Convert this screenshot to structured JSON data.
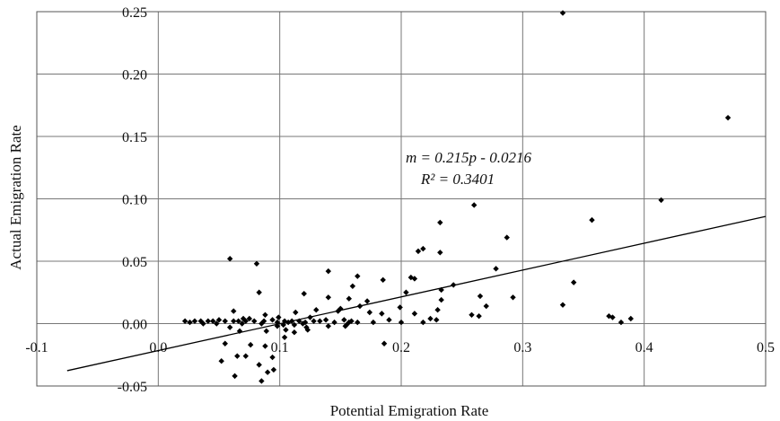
{
  "chart_data": {
    "type": "scatter",
    "xlabel": "Potential Emigration Rate",
    "ylabel": "Actual Emigration Rate",
    "xlim": [
      -0.1,
      0.5
    ],
    "ylim": [
      -0.05,
      0.25
    ],
    "x_ticks": [
      "-0.1",
      "0.0",
      "0.1",
      "0.2",
      "0.3",
      "0.4",
      "0.5"
    ],
    "y_ticks": [
      "-0.05",
      "0.00",
      "0.05",
      "0.10",
      "0.15",
      "0.20",
      "0.25"
    ],
    "grid": true,
    "legend": "none",
    "trendline": {
      "equation": "m = 0.215p - 0.0216",
      "r_squared": "R² = 0.3401",
      "slope": 0.215,
      "intercept": -0.0216,
      "x_range": [
        -0.075,
        0.5
      ]
    },
    "points": [
      [
        0.333,
        0.249
      ],
      [
        0.469,
        0.165
      ],
      [
        0.414,
        0.099
      ],
      [
        0.26,
        0.095
      ],
      [
        0.357,
        0.083
      ],
      [
        0.232,
        0.081
      ],
      [
        0.287,
        0.069
      ],
      [
        0.218,
        0.06
      ],
      [
        0.214,
        0.058
      ],
      [
        0.232,
        0.057
      ],
      [
        0.059,
        0.052
      ],
      [
        0.081,
        0.048
      ],
      [
        0.278,
        0.044
      ],
      [
        0.14,
        0.042
      ],
      [
        0.164,
        0.038
      ],
      [
        0.208,
        0.037
      ],
      [
        0.211,
        0.036
      ],
      [
        0.185,
        0.035
      ],
      [
        0.342,
        0.033
      ],
      [
        0.243,
        0.031
      ],
      [
        0.16,
        0.03
      ],
      [
        0.233,
        0.027
      ],
      [
        0.083,
        0.025
      ],
      [
        0.12,
        0.024
      ],
      [
        0.204,
        0.025
      ],
      [
        0.265,
        0.022
      ],
      [
        0.292,
        0.021
      ],
      [
        0.14,
        0.021
      ],
      [
        0.157,
        0.02
      ],
      [
        0.233,
        0.019
      ],
      [
        0.172,
        0.018
      ],
      [
        0.333,
        0.015
      ],
      [
        0.27,
        0.014
      ],
      [
        0.166,
        0.014
      ],
      [
        0.199,
        0.013
      ],
      [
        0.15,
        0.012
      ],
      [
        0.13,
        0.011
      ],
      [
        0.23,
        0.011
      ],
      [
        0.148,
        0.01
      ],
      [
        0.062,
        0.01
      ],
      [
        0.113,
        0.009
      ],
      [
        0.174,
        0.009
      ],
      [
        0.184,
        0.008
      ],
      [
        0.211,
        0.008
      ],
      [
        0.088,
        0.007
      ],
      [
        0.258,
        0.007
      ],
      [
        0.264,
        0.006
      ],
      [
        0.371,
        0.006
      ],
      [
        0.374,
        0.005
      ],
      [
        0.125,
        0.005
      ],
      [
        0.099,
        0.005
      ],
      [
        0.075,
        0.004
      ],
      [
        0.07,
        0.004
      ],
      [
        0.389,
        0.004
      ],
      [
        0.224,
        0.004
      ],
      [
        0.229,
        0.003
      ],
      [
        0.19,
        0.003
      ],
      [
        0.138,
        0.003
      ],
      [
        0.153,
        0.003
      ],
      [
        0.05,
        0.003
      ],
      [
        0.022,
        0.002
      ],
      [
        0.03,
        0.002
      ],
      [
        0.035,
        0.002
      ],
      [
        0.041,
        0.002
      ],
      [
        0.045,
        0.002
      ],
      [
        0.055,
        0.002
      ],
      [
        0.062,
        0.002
      ],
      [
        0.066,
        0.002
      ],
      [
        0.072,
        0.002
      ],
      [
        0.079,
        0.002
      ],
      [
        0.087,
        0.002
      ],
      [
        0.094,
        0.003
      ],
      [
        0.104,
        0.002
      ],
      [
        0.11,
        0.002
      ],
      [
        0.116,
        0.002
      ],
      [
        0.121,
        0.001
      ],
      [
        0.128,
        0.002
      ],
      [
        0.133,
        0.002
      ],
      [
        0.145,
        0.001
      ],
      [
        0.157,
        0.001
      ],
      [
        0.159,
        0.002
      ],
      [
        0.164,
        0.001
      ],
      [
        0.177,
        0.001
      ],
      [
        0.2,
        0.001
      ],
      [
        0.218,
        0.001
      ],
      [
        0.381,
        0.001
      ],
      [
        0.098,
        0.001
      ],
      [
        0.107,
        0.001
      ],
      [
        0.112,
        -0.001
      ],
      [
        0.119,
        0.0
      ],
      [
        0.026,
        0.001
      ],
      [
        0.037,
        0.0
      ],
      [
        0.048,
        0.0
      ],
      [
        0.069,
        0.0
      ],
      [
        0.085,
        0.0
      ],
      [
        0.103,
        -0.001
      ],
      [
        0.122,
        -0.003
      ],
      [
        0.14,
        -0.002
      ],
      [
        0.154,
        -0.002
      ],
      [
        0.155,
        -0.001
      ],
      [
        0.059,
        -0.003
      ],
      [
        0.098,
        -0.002
      ],
      [
        0.105,
        -0.005
      ],
      [
        0.123,
        -0.005
      ],
      [
        0.089,
        -0.006
      ],
      [
        0.067,
        -0.006
      ],
      [
        0.112,
        -0.007
      ],
      [
        0.104,
        -0.011
      ],
      [
        0.055,
        -0.016
      ],
      [
        0.088,
        -0.018
      ],
      [
        0.186,
        -0.016
      ],
      [
        0.076,
        -0.017
      ],
      [
        0.065,
        -0.026
      ],
      [
        0.072,
        -0.026
      ],
      [
        0.094,
        -0.027
      ],
      [
        0.052,
        -0.03
      ],
      [
        0.083,
        -0.033
      ],
      [
        0.095,
        -0.037
      ],
      [
        0.063,
        -0.042
      ],
      [
        0.09,
        -0.039
      ],
      [
        0.085,
        -0.046
      ]
    ]
  }
}
